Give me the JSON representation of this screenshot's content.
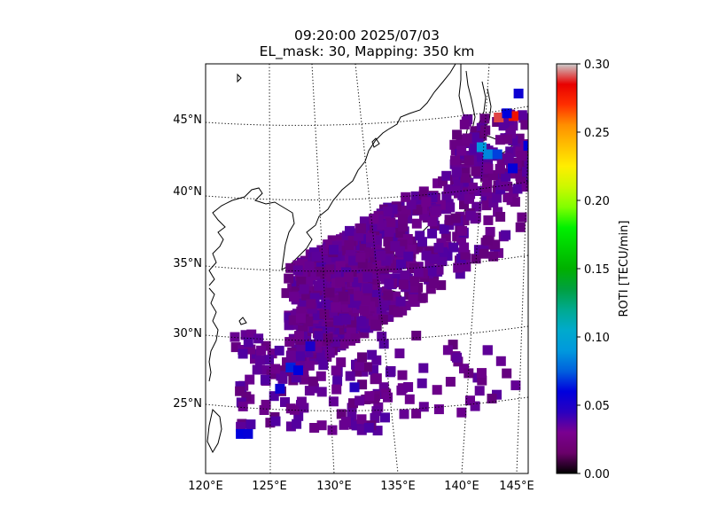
{
  "title": {
    "time_line": "09:20:00 2025/07/03",
    "config_line": "EL_mask: 30, Mapping: 350 km"
  },
  "map": {
    "projection": "conic",
    "lon_range": [
      120,
      145
    ],
    "lat_range": [
      20,
      49
    ],
    "lon_ticks": [
      "120°E",
      "125°E",
      "130°E",
      "135°E",
      "140°E",
      "145°E"
    ],
    "lat_ticks": [
      "25°N",
      "30°N",
      "35°N",
      "40°N",
      "45°N"
    ],
    "gridlines": "dotted",
    "background_color": "#ffffff",
    "coastline_color": "#000000"
  },
  "colorbar": {
    "label": "ROTI [TECU/min]",
    "ticks": [
      "0.00",
      "0.05",
      "0.10",
      "0.15",
      "0.20",
      "0.25",
      "0.30"
    ],
    "min": 0.0,
    "max": 0.3,
    "colormap": "nipy_spectral",
    "placement": "right"
  },
  "chart_data": {
    "type": "heatmap",
    "title": "09:20:00 2025/07/03 EL_mask: 30, Mapping: 350 km",
    "xlabel": "",
    "ylabel": "",
    "value_label": "ROTI [TECU/min]",
    "xlim": [
      120,
      145
    ],
    "ylim": [
      20,
      49
    ],
    "vlim": [
      0.0,
      0.3
    ],
    "background_level": 0.025,
    "points": [
      {
        "lon": 142.3,
        "lat": 45.2,
        "value": 0.29
      },
      {
        "lon": 143.4,
        "lat": 45.3,
        "value": 0.28
      },
      {
        "lon": 142.9,
        "lat": 45.5,
        "value": 0.06
      },
      {
        "lon": 143.7,
        "lat": 46.9,
        "value": 0.055
      },
      {
        "lon": 141.1,
        "lat": 43.1,
        "value": 0.09
      },
      {
        "lon": 141.6,
        "lat": 42.6,
        "value": 0.085
      },
      {
        "lon": 142.3,
        "lat": 42.6,
        "value": 0.07
      },
      {
        "lon": 144.6,
        "lat": 43.2,
        "value": 0.06
      },
      {
        "lon": 143.5,
        "lat": 41.6,
        "value": 0.058
      },
      {
        "lon": 126.4,
        "lat": 27.5,
        "value": 0.065
      },
      {
        "lon": 127.0,
        "lat": 27.3,
        "value": 0.06
      },
      {
        "lon": 125.5,
        "lat": 26.0,
        "value": 0.055
      },
      {
        "lon": 122.2,
        "lat": 22.8,
        "value": 0.06
      },
      {
        "lon": 122.8,
        "lat": 22.8,
        "value": 0.058
      },
      {
        "lon": 128.0,
        "lat": 29.0,
        "value": 0.05
      },
      {
        "lon": 131.5,
        "lat": 26.1,
        "value": 0.045
      }
    ]
  }
}
